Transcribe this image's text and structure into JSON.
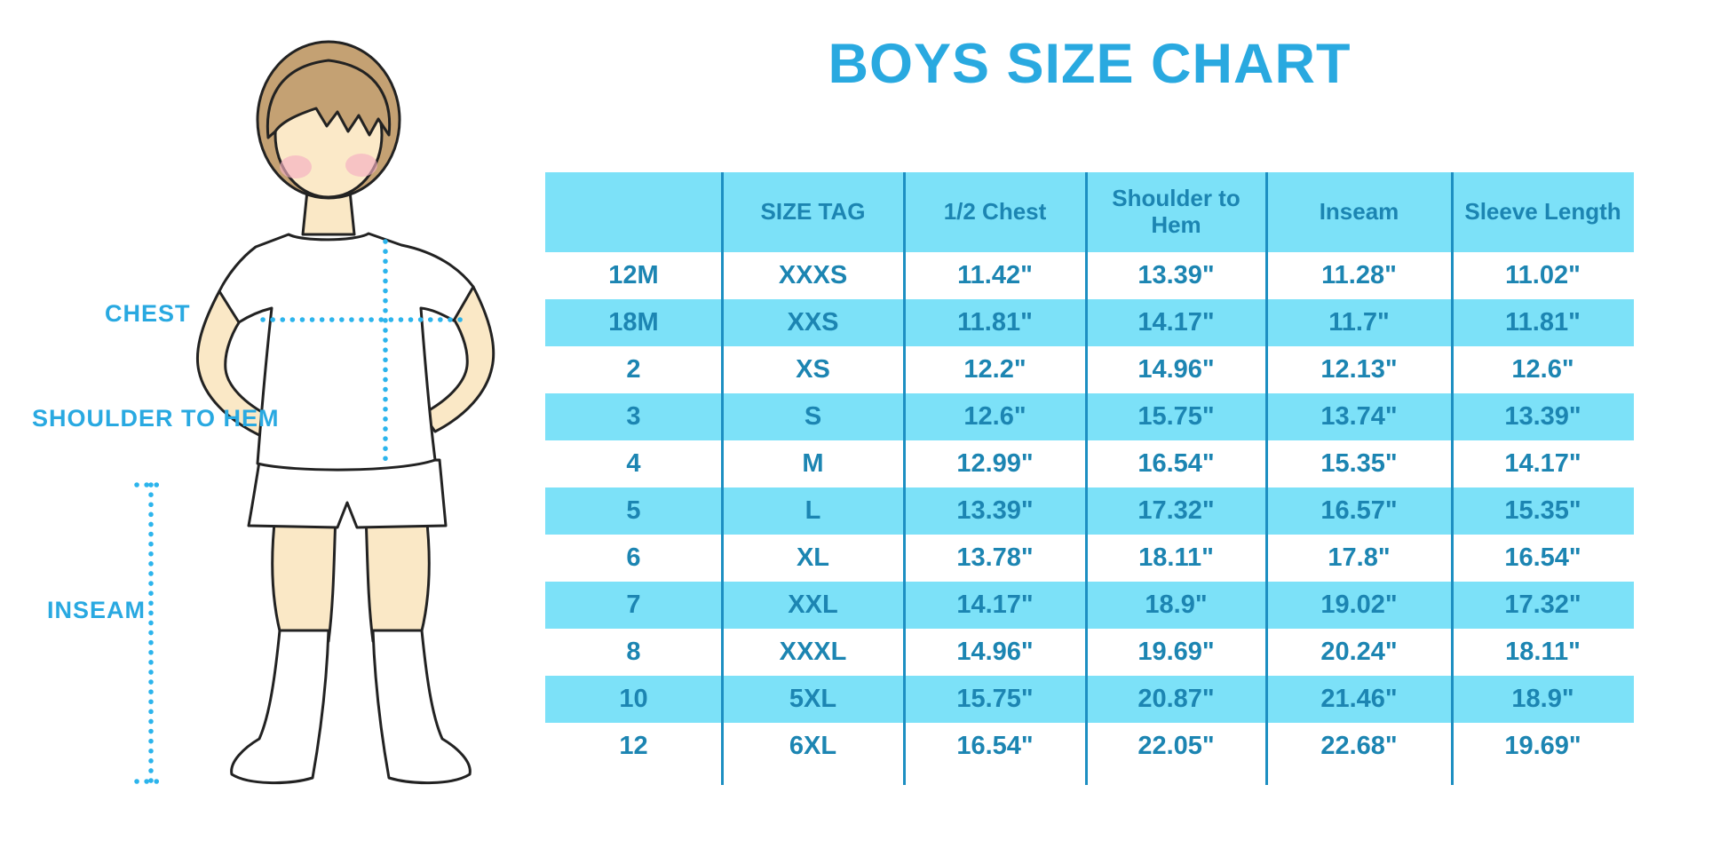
{
  "title": "BOYS SIZE CHART",
  "figure": {
    "description": "cartoon boy in white t-shirt, white shorts and white knee socks with measurement guides",
    "labels": {
      "chest": "CHEST",
      "shoulder_to_hem": "SHOULDER TO HEM",
      "inseam": "INSEAM"
    }
  },
  "table": {
    "columns": [
      "",
      "SIZE TAG",
      "1/2 Chest",
      "Shoulder to Hem",
      "Inseam",
      "Sleeve Length"
    ],
    "rows": [
      [
        "12M",
        "XXXS",
        "11.42\"",
        "13.39\"",
        "11.28\"",
        "11.02\""
      ],
      [
        "18M",
        "XXS",
        "11.81\"",
        "14.17\"",
        "11.7\"",
        "11.81\""
      ],
      [
        "2",
        "XS",
        "12.2\"",
        "14.96\"",
        "12.13\"",
        "12.6\""
      ],
      [
        "3",
        "S",
        "12.6\"",
        "15.75\"",
        "13.74\"",
        "13.39\""
      ],
      [
        "4",
        "M",
        "12.99\"",
        "16.54\"",
        "15.35\"",
        "14.17\""
      ],
      [
        "5",
        "L",
        "13.39\"",
        "17.32\"",
        "16.57\"",
        "15.35\""
      ],
      [
        "6",
        "XL",
        "13.78\"",
        "18.11\"",
        "17.8\"",
        "16.54\""
      ],
      [
        "7",
        "XXL",
        "14.17\"",
        "18.9\"",
        "19.02\"",
        "17.32\""
      ],
      [
        "8",
        "XXXL",
        "14.96\"",
        "19.69\"",
        "20.24\"",
        "18.11\""
      ],
      [
        "10",
        "5XL",
        "15.75\"",
        "20.87\"",
        "21.46\"",
        "18.9\""
      ],
      [
        "12",
        "6XL",
        "16.54\"",
        "22.05\"",
        "22.68\"",
        "19.69\""
      ]
    ]
  },
  "colors": {
    "accent_blue": "#29A9E1",
    "table_text": "#1C85B2",
    "row_cyan": "#7CE1F8",
    "divider": "#1D8FC2",
    "dotted_line": "#2CB4EC",
    "skin": "#FAE8C6",
    "hair": "#C4A173",
    "cheek": "#F4AFC1"
  }
}
